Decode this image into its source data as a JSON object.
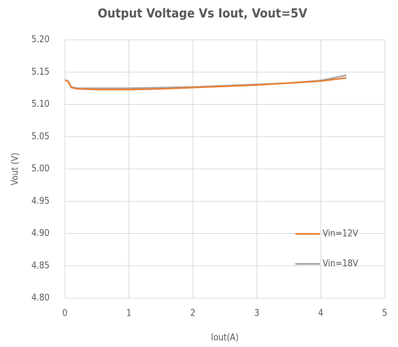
{
  "chart_data": {
    "type": "line",
    "title": "Output Voltage Vs Iout, Vout=5V",
    "x_label": "Iout(A)",
    "y_label": "Vout (V)",
    "x": [
      0,
      0.05,
      0.1,
      0.2,
      0.5,
      1,
      1.5,
      2,
      2.5,
      3,
      3.5,
      4,
      4.4
    ],
    "series": [
      {
        "name": "Vin=12V",
        "color": "#ed7d31",
        "values": [
          5.138,
          5.135,
          5.126,
          5.124,
          5.123,
          5.123,
          5.124,
          5.126,
          5.128,
          5.13,
          5.133,
          5.136,
          5.141
        ]
      },
      {
        "name": "Vin=18V",
        "color": "#a5a5a5",
        "values": [
          5.138,
          5.136,
          5.127,
          5.125,
          5.125,
          5.125,
          5.126,
          5.127,
          5.129,
          5.131,
          5.133,
          5.137,
          5.145
        ]
      }
    ],
    "xlim": [
      0,
      5
    ],
    "xticks": [
      0,
      1,
      2,
      3,
      4,
      5
    ],
    "ylim": [
      4.8,
      5.2
    ],
    "yticks": [
      {
        "value": 4.8,
        "label": "4.80"
      },
      4.85,
      {
        "value": 4.9,
        "label": "4.90"
      },
      4.95,
      {
        "value": 5.0,
        "label": "5.00"
      },
      5.05,
      {
        "value": 5.1,
        "label": "5.10"
      },
      5.15,
      {
        "value": 5.2,
        "label": "5.20"
      }
    ],
    "grid": true,
    "legend": "right"
  }
}
